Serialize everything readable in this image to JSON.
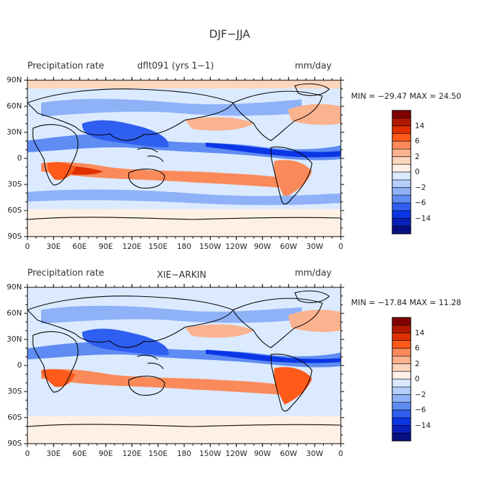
{
  "title": "DJF−JJA",
  "panels": [
    {
      "variable_label": "Precipitation rate",
      "dataset_label": "dflt091 (yrs 1−1)",
      "units_label": "mm/day",
      "stats_label": "MIN = −29.47 MAX =  24.50",
      "min": -29.47,
      "max": 24.5
    },
    {
      "variable_label": "Precipitation rate",
      "dataset_label": "XIE−ARKIN",
      "units_label": "mm/day",
      "stats_label": "MIN = −17.84 MAX =  11.28",
      "min": -17.84,
      "max": 11.28
    }
  ],
  "lat_ticks": [
    "90N",
    "60N",
    "30N",
    "0",
    "30S",
    "60S",
    "90S"
  ],
  "lon_ticks": [
    "0",
    "30E",
    "60E",
    "90E",
    "120E",
    "150E",
    "180",
    "150W",
    "120W",
    "90W",
    "60W",
    "30W",
    "0"
  ],
  "colorbar": {
    "labels": [
      "14",
      "6",
      "2",
      "0",
      "−2",
      "−6",
      "−14"
    ],
    "colors": [
      "#7f0000",
      "#b21800",
      "#e03000",
      "#ff5a1a",
      "#fb8a5a",
      "#fbb28e",
      "#fdd6be",
      "#fff0e6",
      "#dbeaff",
      "#b4cffb",
      "#8fb1f7",
      "#5f8cf2",
      "#2f5ff0",
      "#0b36e6",
      "#0a1fb8",
      "#071080"
    ]
  },
  "map_colors": {
    "ocean_base": "#dbeaff",
    "coast": "#000000"
  }
}
